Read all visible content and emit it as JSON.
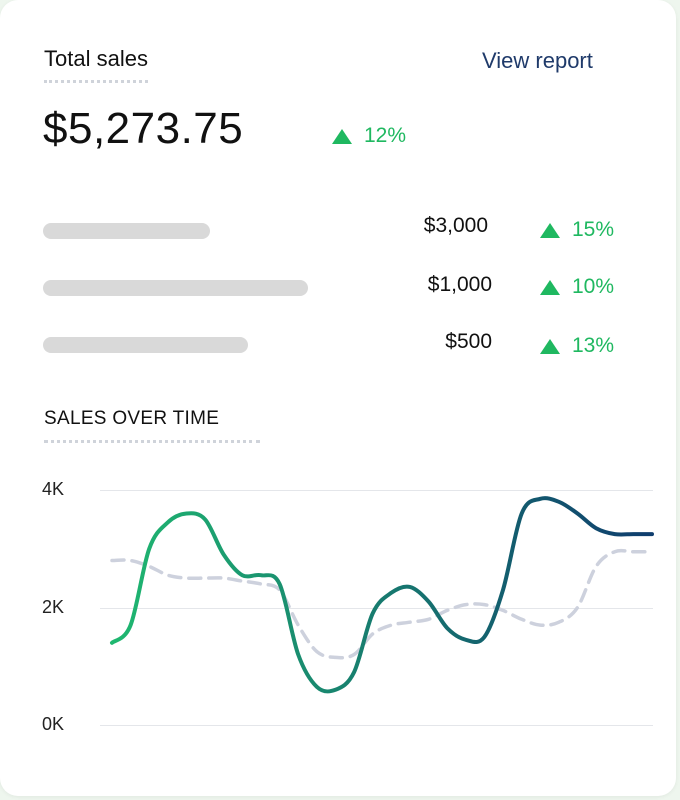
{
  "header": {
    "title": "Total sales",
    "link_label": "View report"
  },
  "summary": {
    "total": "$5,273.75",
    "change": "12%"
  },
  "breakdown": [
    {
      "value": "$3,000",
      "change": "15%",
      "bar_fraction": 0.31
    },
    {
      "value": "$1,000",
      "change": "10%",
      "bar_fraction": 0.49
    },
    {
      "value": "$500",
      "change": "13%",
      "bar_fraction": 0.38
    }
  ],
  "chart_section": {
    "title": "SALES OVER TIME"
  },
  "colors": {
    "positive": "#1fb860",
    "line_start": "#1fb870",
    "line_end": "#0f3d6e",
    "comparison_line": "#cdd1dd",
    "link": "#1f3a6a"
  },
  "chart_data": {
    "type": "line",
    "ylim": [
      0,
      4000
    ],
    "ytick_labels": [
      "4K",
      "2K",
      "0K"
    ],
    "yticks": [
      4000,
      2000,
      0
    ],
    "x": [
      0,
      1,
      2,
      3,
      4,
      5,
      6,
      7,
      8,
      9,
      10,
      11,
      12,
      13,
      14,
      15,
      16,
      17,
      18,
      19,
      20,
      21,
      22,
      23,
      24,
      25,
      26,
      27,
      28,
      29
    ],
    "series": [
      {
        "values": [
          1400,
          1700,
          3000,
          3450,
          3600,
          3500,
          2900,
          2550,
          2550,
          2400,
          1200,
          650,
          600,
          900,
          1900,
          2250,
          2350,
          2100,
          1650,
          1450,
          1500,
          2300,
          3600,
          3850,
          3800,
          3600,
          3350,
          3250,
          3250,
          3250
        ]
      },
      {
        "values": [
          2800,
          2800,
          2700,
          2550,
          2500,
          2500,
          2500,
          2450,
          2400,
          2300,
          1700,
          1250,
          1150,
          1200,
          1550,
          1700,
          1750,
          1800,
          1950,
          2050,
          2050,
          1950,
          1800,
          1700,
          1750,
          2000,
          2700,
          2950,
          2950,
          2950
        ]
      }
    ]
  }
}
